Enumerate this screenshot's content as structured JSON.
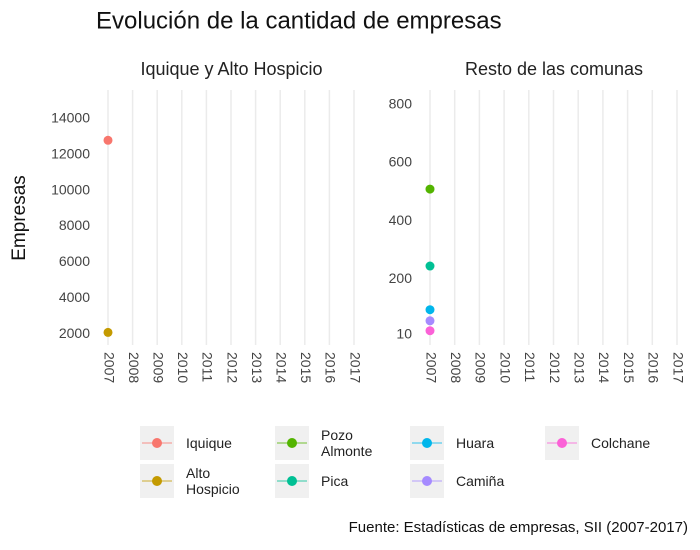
{
  "chart_data": {
    "type": "line",
    "title": "Evolución de la cantidad de empresas",
    "y_label": "Empresas",
    "caption": "Fuente: Estadísticas de empresas, SII (2007-2017)",
    "x": [
      2007,
      2008,
      2009,
      2010,
      2011,
      2012,
      2013,
      2014,
      2015,
      2016,
      2017
    ],
    "grid": true,
    "panels": [
      {
        "title": "Iquique y Alto Hospicio",
        "ylim": [
          1400,
          15600
        ],
        "yticks": [
          2000,
          4000,
          6000,
          8000,
          10000,
          12000,
          14000
        ],
        "series": [
          {
            "name": "Iquique",
            "color": "#F8766D",
            "values": [
              12800,
              null,
              null,
              null,
              null,
              null,
              null,
              null,
              null,
              null,
              null
            ]
          },
          {
            "name": "Alto Hospicio",
            "color": "#C49A00",
            "values": [
              2100,
              null,
              null,
              null,
              null,
              null,
              null,
              null,
              null,
              null,
              null
            ]
          }
        ]
      },
      {
        "title": "Resto de las comunas",
        "ylim": [
          -25,
          850
        ],
        "yticks": [
          10,
          200,
          400,
          600,
          800
        ],
        "series": [
          {
            "name": "Pozo Almonte",
            "color": "#53B400",
            "values": [
              510,
              null,
              null,
              null,
              null,
              null,
              null,
              null,
              null,
              null,
              null
            ]
          },
          {
            "name": "Pica",
            "color": "#00C094",
            "values": [
              246,
              null,
              null,
              null,
              null,
              null,
              null,
              null,
              null,
              null,
              null
            ]
          },
          {
            "name": "Huara",
            "color": "#00B6EB",
            "values": [
              96,
              null,
              null,
              null,
              null,
              null,
              null,
              null,
              null,
              null,
              null
            ]
          },
          {
            "name": "Camiña",
            "color": "#A58AFF",
            "values": [
              58,
              null,
              null,
              null,
              null,
              null,
              null,
              null,
              null,
              null,
              null
            ]
          },
          {
            "name": "Colchane",
            "color": "#FB61D7",
            "values": [
              24,
              null,
              null,
              null,
              null,
              null,
              null,
              null,
              null,
              null,
              null
            ]
          }
        ]
      }
    ]
  }
}
